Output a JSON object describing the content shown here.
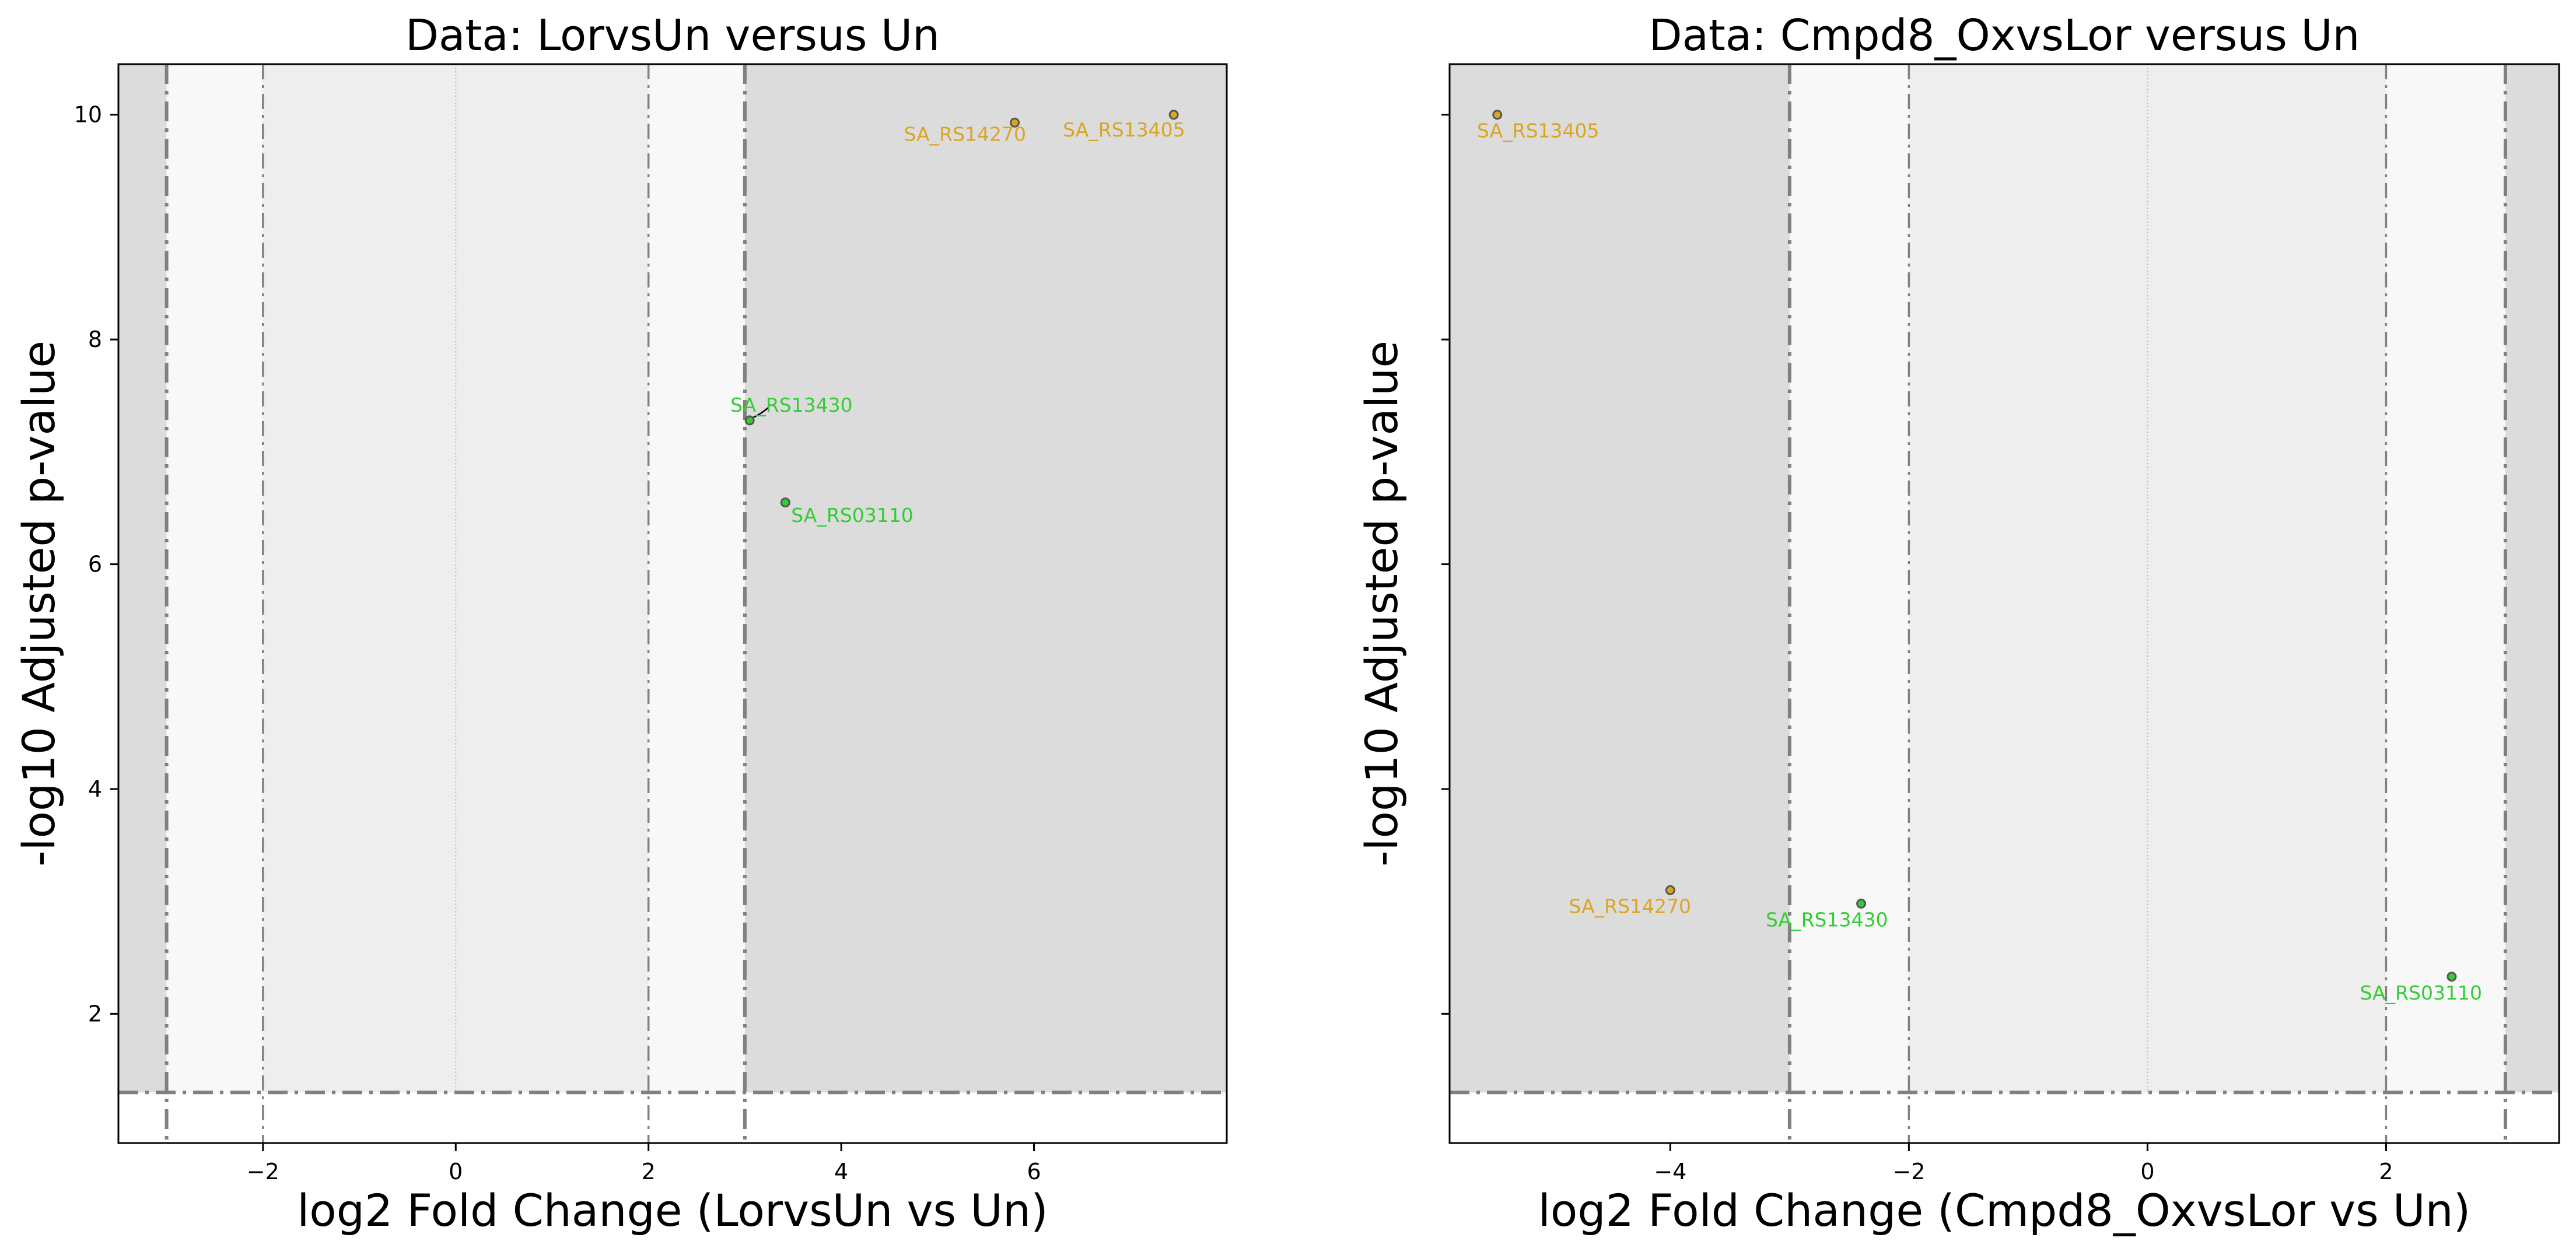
{
  "colors": {
    "orange": "#DAA520",
    "green": "#32CD32",
    "shade_dark": "#DCDCDC",
    "shade_mid": "#EEEEEE",
    "shade_light": "#F8F8F8",
    "threshold_line": "#808080"
  },
  "chart_data": [
    {
      "type": "scatter",
      "title": "Data: LorvsUn versus Un",
      "xlabel": "log2 Fold Change (LorvsUn vs Un)",
      "ylabel": "-log10 Adjusted p-value",
      "xlim": [
        -3.5,
        8
      ],
      "ylim": [
        0.85,
        10.45
      ],
      "xticks": [
        -2,
        0,
        2,
        4,
        6
      ],
      "yticks": [
        2,
        4,
        6,
        8,
        10
      ],
      "xtick_labels": [
        "−2",
        "0",
        "2",
        "4",
        "6"
      ],
      "ytick_labels": [
        "2",
        "4",
        "6",
        "8",
        "10"
      ],
      "show_ytick_labels": true,
      "fc_thresholds": [
        -3,
        -2,
        2,
        3
      ],
      "p_threshold": 1.3,
      "grid": false,
      "points": [
        {
          "label": "SA_RS14270",
          "x": 5.8,
          "y": 9.93,
          "color": "orange",
          "label_x": 4.65,
          "label_y": 9.83
        },
        {
          "label": "SA_RS13405",
          "x": 7.45,
          "y": 10.0,
          "color": "orange",
          "label_x": 6.3,
          "label_y": 9.87
        },
        {
          "label": "SA_RS13430",
          "x": 3.05,
          "y": 7.28,
          "color": "green",
          "label_x": 2.85,
          "label_y": 7.42,
          "leader": true
        },
        {
          "label": "SA_RS03110",
          "x": 3.42,
          "y": 6.55,
          "color": "green",
          "label_x": 3.48,
          "label_y": 6.44
        }
      ]
    },
    {
      "type": "scatter",
      "title": "Data: Cmpd8_OxvsLor versus Un",
      "xlabel": "log2 Fold Change (Cmpd8_OxvsLor vs Un)",
      "ylabel": "-log10 Adjusted p-value",
      "xlim": [
        -5.85,
        3.45
      ],
      "ylim": [
        0.85,
        10.45
      ],
      "xticks": [
        -4,
        -2,
        0,
        2
      ],
      "yticks": [
        2,
        4,
        6,
        8,
        10
      ],
      "xtick_labels": [
        "−4",
        "−2",
        "0",
        "2"
      ],
      "ytick_labels": [
        "2",
        "4",
        "6",
        "8",
        "10"
      ],
      "show_ytick_labels": false,
      "fc_thresholds": [
        -3,
        -2,
        2,
        3
      ],
      "p_threshold": 1.3,
      "grid": false,
      "points": [
        {
          "label": "SA_RS13405",
          "x": -5.45,
          "y": 10.0,
          "color": "orange",
          "label_x": -5.62,
          "label_y": 9.86
        },
        {
          "label": "SA_RS14270",
          "x": -4.0,
          "y": 3.1,
          "color": "orange",
          "label_x": -4.85,
          "label_y": 2.96
        },
        {
          "label": "SA_RS13430",
          "x": -2.4,
          "y": 2.98,
          "color": "green",
          "label_x": -3.2,
          "label_y": 2.84
        },
        {
          "label": "SA_RS03110",
          "x": 2.55,
          "y": 2.33,
          "color": "green",
          "label_x": 1.78,
          "label_y": 2.19
        }
      ]
    }
  ]
}
